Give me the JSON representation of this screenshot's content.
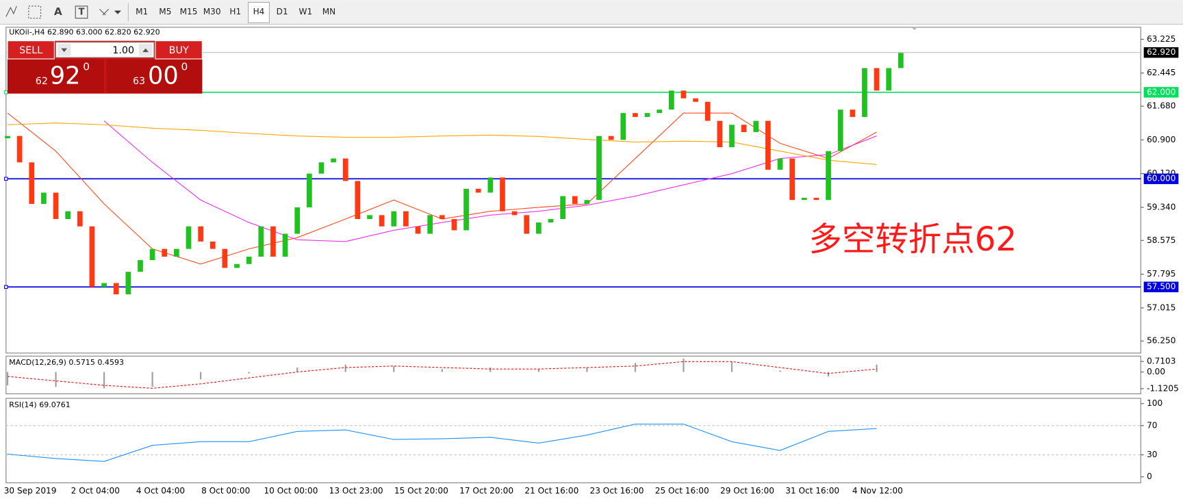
{
  "toolbar": {
    "text_tool": "A",
    "label_tool": "T",
    "timeframes": [
      "M1",
      "M5",
      "M15",
      "M30",
      "H1",
      "H4",
      "D1",
      "W1",
      "MN"
    ],
    "active": "H4"
  },
  "trade_panel": {
    "sell": "SELL",
    "lot": "1.00",
    "buy": "BUY",
    "bid_big": "62",
    "bid_main": "92",
    "bid_sup": "0",
    "ask_big": "63",
    "ask_main": "00",
    "ask_sup": "0"
  },
  "chart_data": {
    "type": "candlestick",
    "symbol_label": "UKOil-,H4  62.890 63.000 62.820 62.920",
    "annotation": "多空转折点62",
    "time_labels": [
      "30 Sep 2019",
      "2 Oct 04:00",
      "4 Oct 04:00",
      "8 Oct 00:00",
      "10 Oct 00:00",
      "13 Oct 23:00",
      "15 Oct 20:00",
      "17 Oct 20:00",
      "21 Oct 16:00",
      "23 Oct 16:00",
      "25 Oct 16:00",
      "29 Oct 16:00",
      "31 Oct 16:00",
      "4 Nov 12:00"
    ],
    "close": [
      60.99,
      60.38,
      59.42,
      59.68,
      59.07,
      59.25,
      58.9,
      57.5,
      57.59,
      57.33,
      57.85,
      58.12,
      58.38,
      58.2,
      58.38,
      58.9,
      58.55,
      58.38,
      57.94,
      58.03,
      58.2,
      58.9,
      58.2,
      58.73,
      59.34,
      60.12,
      60.38,
      60.47,
      59.95,
      59.07,
      59.16,
      58.9,
      59.25,
      58.9,
      58.73,
      59.16,
      59.07,
      58.81,
      59.77,
      59.68,
      60.03,
      59.25,
      59.16,
      58.73,
      58.99,
      59.07,
      59.6,
      59.42,
      59.51,
      60.99,
      60.9,
      61.52,
      61.43,
      61.52,
      61.6,
      62.04,
      61.86,
      61.78,
      61.34,
      60.73,
      61.25,
      61.08,
      61.34,
      60.21,
      60.47,
      59.51,
      59.56,
      59.51,
      60.64,
      61.6,
      61.43,
      62.56,
      62.04,
      62.56,
      62.91
    ],
    "up_color": "#1fc21f",
    "down_color": "#ff3a12",
    "ylim": [
      55.971,
      63.504
    ],
    "yticks": [
      63.225,
      62.445,
      {
        "value": 61.68,
        "label": "61.680"
      },
      {
        "value": 60.9,
        "label": "60.900"
      },
      {
        "value": 60.12,
        "label": "60.120"
      },
      {
        "value": 59.34,
        "label": "59.340"
      },
      58.575,
      57.795,
      57.015,
      {
        "value": 56.25,
        "label": "56.250"
      }
    ],
    "levels": [
      {
        "value": 62.0,
        "label": "62.000",
        "color": "#00e05a"
      },
      {
        "value": 60.0,
        "label": "60.000",
        "color": "#0000e0"
      },
      {
        "value": 57.5,
        "label": "57.500",
        "color": "#0000e0"
      }
    ],
    "last_price": {
      "value": 62.92,
      "label": "62.920"
    },
    "moving_averages": [
      {
        "color": "#ff4a1c",
        "values": [
          61.52,
          60.64,
          59.42,
          58.38,
          58.03,
          58.38,
          58.64,
          59.07,
          59.51,
          59.07,
          59.25,
          59.34,
          59.42,
          60.47,
          61.52,
          61.52,
          60.82,
          60.47,
          61.08
        ]
      },
      {
        "color": "#ee30ee",
        "values": [
          null,
          null,
          61.34,
          60.38,
          59.51,
          58.99,
          58.59,
          58.55,
          58.81,
          58.99,
          59.16,
          59.25,
          59.39,
          59.6,
          59.86,
          60.12,
          60.47,
          60.56,
          60.99
        ]
      },
      {
        "color": "#ffa500",
        "values": [
          61.25,
          61.29,
          61.25,
          61.17,
          61.12,
          61.05,
          60.99,
          60.96,
          60.96,
          60.99,
          61.01,
          60.98,
          60.91,
          60.85,
          60.87,
          60.85,
          60.64,
          60.43,
          60.33
        ]
      }
    ],
    "macd": {
      "label": "MACD(12,26,9) 0.5715 0.4593",
      "ylim": [
        -1.47,
        1.07
      ],
      "yticks": [
        0.7103,
        {
          "value": 0,
          "label": "0.00"
        },
        -1.1205
      ],
      "histogram": [
        -0.9,
        -1.0,
        -1.1,
        -1.0,
        -0.5,
        -0.1,
        0.3,
        0.5,
        0.4,
        0.2,
        0.3,
        0.2,
        0.3,
        0.6,
        0.9,
        0.7,
        0.1,
        -0.3,
        0.5
      ],
      "histogram_color": "#a0a0a0",
      "signal": [
        -0.3,
        -0.6,
        -0.9,
        -1.1,
        -0.8,
        -0.4,
        0.0,
        0.3,
        0.4,
        0.3,
        0.2,
        0.2,
        0.3,
        0.4,
        0.7,
        0.7,
        0.3,
        -0.1,
        0.2
      ],
      "signal_color": "#e01010"
    },
    "rsi": {
      "label": "RSI(14) 69.0761",
      "ylim": [
        -8.2,
        107.2
      ],
      "yticks": [
        100,
        70,
        30,
        0
      ],
      "levels": [
        70,
        30
      ],
      "values": [
        31,
        25,
        21,
        43,
        48,
        48,
        62,
        64,
        51,
        52,
        54,
        46,
        57,
        72,
        72,
        48,
        36,
        62,
        66
      ],
      "color": "#1e90ff"
    }
  }
}
